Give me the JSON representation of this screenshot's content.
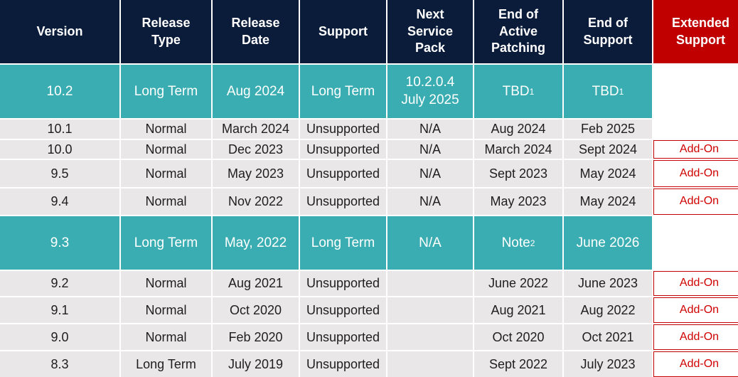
{
  "headers": [
    "Version",
    "Release\nType",
    "Release\nDate",
    "Support",
    "Next\nService\nPack",
    "End of\nActive\nPatching",
    "End of\nSupport",
    "Extended\nSupport"
  ],
  "rows": [
    {
      "version": "10.2",
      "type": "Long Term",
      "date": "Aug 2024",
      "support": "Long Term",
      "sp": "10.2.0.4\nJuly 2025",
      "patch": "TBD",
      "patch_sup": "1",
      "eos": "TBD",
      "eos_sup": "1",
      "ext": ""
    },
    {
      "version": "10.1",
      "type": "Normal",
      "date": "March 2024",
      "support": "Unsupported",
      "sp": "N/A",
      "patch": "Aug 2024",
      "eos": "Feb 2025",
      "ext": ""
    },
    {
      "version": "10.0",
      "type": "Normal",
      "date": "Dec 2023",
      "support": "Unsupported",
      "sp": "N/A",
      "patch": "March 2024",
      "eos": "Sept 2024",
      "ext": "Add-On"
    },
    {
      "version": "9.5",
      "type": "Normal",
      "date": "May 2023",
      "support": "Unsupported",
      "sp": "N/A",
      "patch": "Sept 2023",
      "eos": "May 2024",
      "ext": "Add-On"
    },
    {
      "version": "9.4",
      "type": "Normal",
      "date": "Nov 2022",
      "support": "Unsupported",
      "sp": "N/A",
      "patch": "May 2023",
      "eos": "May 2024",
      "ext": "Add-On"
    },
    {
      "version": "9.3",
      "type": "Long Term",
      "date": "May, 2022",
      "support": "Long Term",
      "sp": "N/A",
      "patch": "Note",
      "patch_sup": "2",
      "eos": "June 2026",
      "ext": ""
    },
    {
      "version": "9.2",
      "type": "Normal",
      "date": "Aug 2021",
      "support": "Unsupported",
      "sp": "",
      "patch": "June 2022",
      "eos": "June 2023",
      "ext": "Add-On"
    },
    {
      "version": "9.1",
      "type": "Normal",
      "date": "Oct 2020",
      "support": "Unsupported",
      "sp": "",
      "patch": "Aug 2021",
      "eos": "Aug 2022",
      "ext": "Add-On"
    },
    {
      "version": "9.0",
      "type": "Normal",
      "date": "Feb 2020",
      "support": "Unsupported",
      "sp": "",
      "patch": "Oct 2020",
      "eos": "Oct 2021",
      "ext": "Add-On"
    },
    {
      "version": "8.3",
      "type": "Long Term",
      "date": "July 2019",
      "support": "Unsupported",
      "sp": "",
      "patch": "Sept 2022",
      "eos": "July 2023",
      "ext": "Add-On"
    }
  ]
}
